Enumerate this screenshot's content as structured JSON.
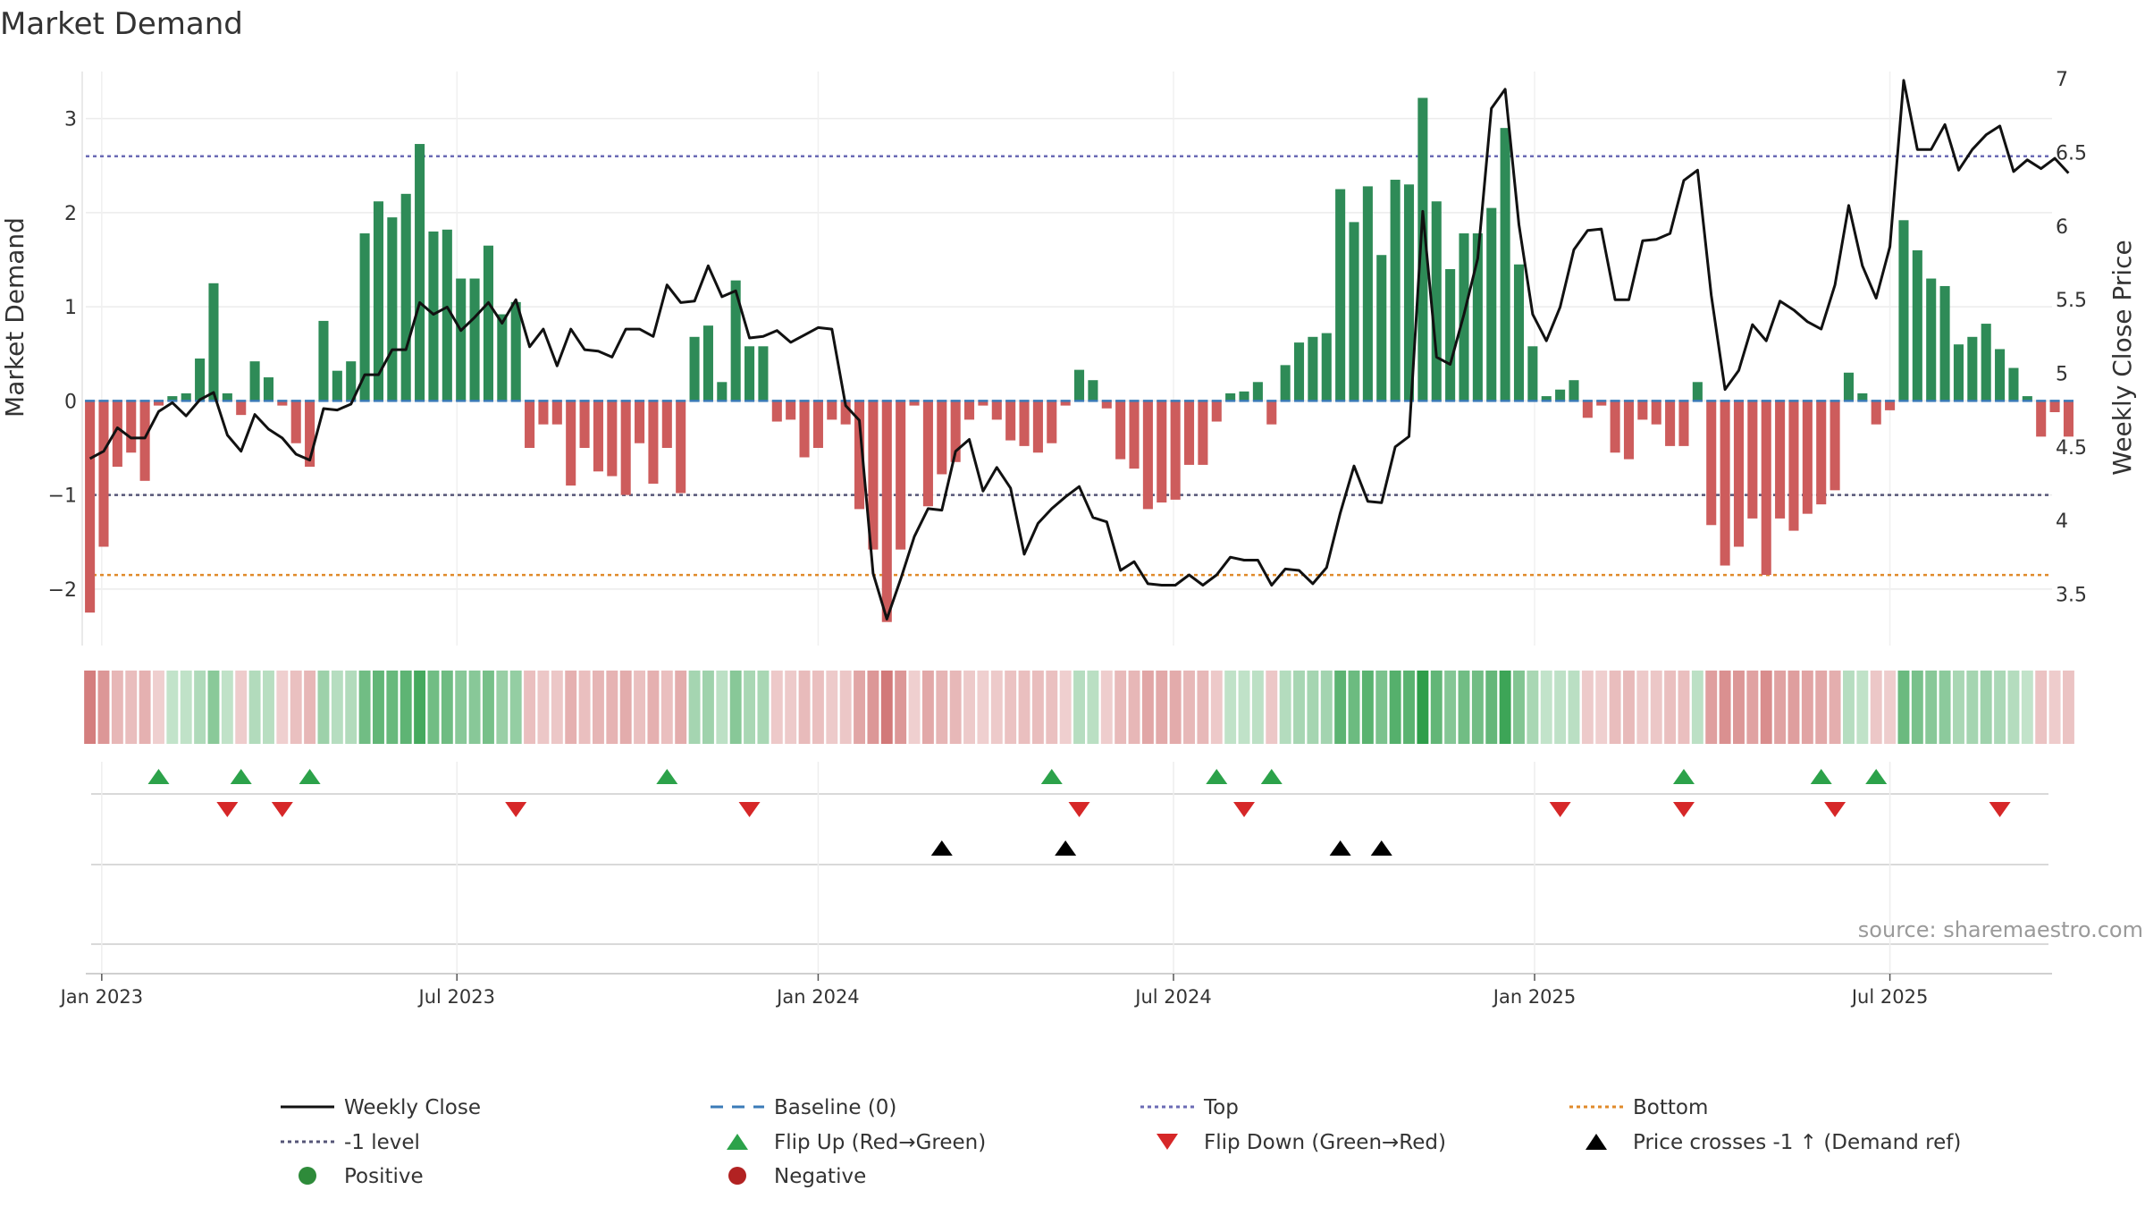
{
  "chart_data": {
    "type": "bar",
    "title": "Market Demand",
    "ylabel": "Market Demand",
    "y2label": "Weekly Close Price",
    "ylim": [
      -2.6,
      3.5
    ],
    "y2lim": [
      3.15,
      7.05
    ],
    "yticks": [
      -2,
      -1,
      0,
      1,
      2,
      3
    ],
    "yticklabels": [
      "−2",
      "−1",
      "0",
      "1",
      "2",
      "3"
    ],
    "y2ticks": [
      3.5,
      4,
      4.5,
      5,
      5.5,
      6,
      6.5,
      7
    ],
    "y2ticklabels": [
      "3.5",
      "4",
      "4.5",
      "5",
      "5.5",
      "6",
      "6.5",
      "7"
    ],
    "x_start": "2022-12-26",
    "x_range_weeks": [
      -0.3,
      142.8
    ],
    "xticks": [
      {
        "label": "Jan 2023",
        "week": 0.86
      },
      {
        "label": "Jul 2023",
        "week": 26.71
      },
      {
        "label": "Jan 2024",
        "week": 53.0
      },
      {
        "label": "Jul 2024",
        "week": 78.86
      },
      {
        "label": "Jan 2025",
        "week": 105.14
      },
      {
        "label": "Jul 2025",
        "week": 131.0
      }
    ],
    "reference_lines": {
      "top": 2.6,
      "minus_one": -1.0,
      "bottom": -1.85,
      "baseline": 0
    },
    "demand": [
      -2.25,
      -1.55,
      -0.7,
      -0.55,
      -0.85,
      -0.05,
      0.05,
      0.08,
      0.45,
      1.25,
      0.08,
      -0.15,
      0.42,
      0.25,
      -0.05,
      -0.45,
      -0.7,
      0.85,
      0.32,
      0.42,
      1.78,
      2.12,
      1.95,
      2.2,
      2.73,
      1.8,
      1.82,
      1.3,
      1.3,
      1.65,
      0.92,
      1.05,
      -0.5,
      -0.25,
      -0.25,
      -0.9,
      -0.5,
      -0.75,
      -0.8,
      -1.0,
      -0.45,
      -0.88,
      -0.5,
      -0.98,
      0.68,
      0.8,
      0.2,
      1.28,
      0.58,
      0.58,
      -0.22,
      -0.2,
      -0.6,
      -0.5,
      -0.2,
      -0.25,
      -1.15,
      -1.58,
      -2.35,
      -1.58,
      -0.05,
      -1.12,
      -0.78,
      -0.65,
      -0.2,
      -0.05,
      -0.2,
      -0.42,
      -0.48,
      -0.55,
      -0.45,
      -0.05,
      0.33,
      0.22,
      -0.08,
      -0.62,
      -0.72,
      -1.15,
      -1.08,
      -1.05,
      -0.68,
      -0.68,
      -0.22,
      0.08,
      0.1,
      0.2,
      -0.25,
      0.38,
      0.62,
      0.68,
      0.72,
      2.25,
      1.9,
      2.28,
      1.55,
      2.35,
      2.3,
      3.22,
      2.12,
      1.4,
      1.78,
      1.78,
      2.05,
      2.9,
      1.45,
      0.58,
      0.05,
      0.12,
      0.22,
      -0.18,
      -0.05,
      -0.55,
      -0.62,
      -0.2,
      -0.25,
      -0.48,
      -0.48,
      0.2,
      -1.32,
      -1.75,
      -1.55,
      -1.25,
      -1.85,
      -1.25,
      -1.38,
      -1.2,
      -1.1,
      -0.95,
      0.3,
      0.08,
      -0.25,
      -0.1,
      1.92,
      1.6,
      1.3,
      1.22,
      0.6,
      0.68,
      0.82,
      0.55,
      0.35,
      0.05,
      -0.38,
      -0.12,
      -0.38
    ],
    "weekly_close": [
      4.42,
      4.47,
      4.63,
      4.56,
      4.56,
      4.74,
      4.8,
      4.71,
      4.82,
      4.87,
      4.58,
      4.47,
      4.72,
      4.62,
      4.56,
      4.45,
      4.41,
      4.76,
      4.75,
      4.79,
      4.99,
      4.99,
      5.16,
      5.16,
      5.48,
      5.4,
      5.45,
      5.29,
      5.38,
      5.48,
      5.34,
      5.5,
      5.18,
      5.3,
      5.05,
      5.3,
      5.16,
      5.15,
      5.11,
      5.3,
      5.3,
      5.25,
      5.6,
      5.48,
      5.49,
      5.73,
      5.52,
      5.56,
      5.24,
      5.25,
      5.29,
      5.21,
      5.26,
      5.31,
      5.3,
      4.78,
      4.68,
      3.64,
      3.33,
      3.6,
      3.89,
      4.08,
      4.07,
      4.47,
      4.55,
      4.2,
      4.36,
      4.22,
      3.77,
      3.98,
      4.08,
      4.16,
      4.23,
      4.02,
      3.99,
      3.66,
      3.72,
      3.57,
      3.56,
      3.56,
      3.63,
      3.56,
      3.63,
      3.75,
      3.73,
      3.73,
      3.56,
      3.67,
      3.66,
      3.57,
      3.68,
      4.05,
      4.37,
      4.13,
      4.12,
      4.5,
      4.57,
      6.1,
      5.11,
      5.06,
      5.4,
      5.78,
      6.8,
      6.93,
      6.01,
      5.4,
      5.22,
      5.45,
      5.84,
      5.97,
      5.98,
      5.5,
      5.5,
      5.9,
      5.91,
      5.95,
      6.31,
      6.38,
      5.53,
      4.89,
      5.02,
      5.33,
      5.22,
      5.49,
      5.43,
      5.35,
      5.3,
      5.6,
      6.14,
      5.73,
      5.51,
      5.86,
      6.99,
      6.52,
      6.52,
      6.69,
      6.38,
      6.52,
      6.62,
      6.68,
      6.37,
      6.45,
      6.39,
      6.46,
      6.36
    ],
    "flip_up_weeks": [
      5,
      11,
      16,
      42,
      70,
      82,
      86,
      116,
      126,
      130
    ],
    "flip_down_weeks": [
      10,
      14,
      31,
      48,
      72,
      84,
      107,
      116,
      127,
      139
    ],
    "price_cross_weeks": [
      62,
      71,
      91,
      94
    ],
    "legend": [
      {
        "label": "Weekly Close",
        "kind": "line-solid",
        "color": "#111111"
      },
      {
        "label": "Baseline (0)",
        "kind": "line-dash",
        "color": "#3b7bb8"
      },
      {
        "label": "Top",
        "kind": "line-dot",
        "color": "#6b6bb5"
      },
      {
        "label": "Bottom",
        "kind": "line-dot",
        "color": "#e08a2a"
      },
      {
        "label": "-1 level",
        "kind": "line-dot",
        "color": "#555577"
      },
      {
        "label": "Flip Up (Red→Green)",
        "kind": "tri-up",
        "color": "#2ca24a"
      },
      {
        "label": "Flip Down (Green→Red)",
        "kind": "tri-down",
        "color": "#d62728"
      },
      {
        "label": "Price crosses -1 ↑ (Demand ref)",
        "kind": "tri-up",
        "color": "#000000"
      },
      {
        "label": "Positive",
        "kind": "dot",
        "color": "#2e8b3a"
      },
      {
        "label": "Negative",
        "kind": "dot",
        "color": "#b22222"
      }
    ],
    "source": "source: sharemaestro.com",
    "colors": {
      "positive": "#2e8b57",
      "negative": "#cd5c5c",
      "line": "#111111",
      "top": "#6b6bb5",
      "bottom": "#e08a2a",
      "minus_one": "#555577",
      "baseline": "#3b7bb8",
      "flip_up": "#2ca24a",
      "flip_down": "#d62728",
      "cross": "#000000"
    }
  }
}
